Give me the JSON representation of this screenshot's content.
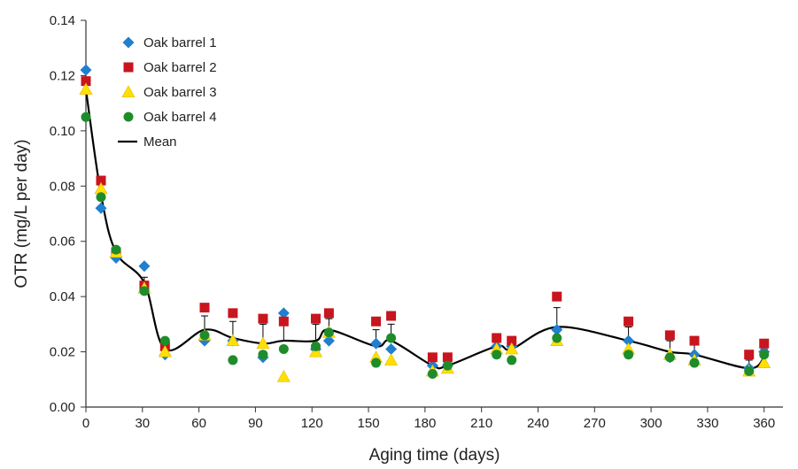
{
  "chart_data": {
    "type": "scatter",
    "title": "",
    "xlabel": "Aging time (days)",
    "ylabel": "OTR  (mg/L per day)",
    "xlim": [
      0,
      370
    ],
    "ylim": [
      0,
      0.14
    ],
    "xticks": [
      "0",
      "30",
      "60",
      "90",
      "120",
      "150",
      "180",
      "210",
      "240",
      "270",
      "300",
      "330",
      "360"
    ],
    "yticks": [
      "0.00",
      "0.02",
      "0.04",
      "0.06",
      "0.08",
      "0.10",
      "0.12",
      "0.14"
    ],
    "grid": false,
    "legend_position": "top-left",
    "series": [
      {
        "name": "Oak barrel 1",
        "marker": "diamond",
        "color": "#1f7fd0",
        "points": [
          [
            0,
            0.122
          ],
          [
            8,
            0.072
          ],
          [
            16,
            0.054
          ],
          [
            31,
            0.051
          ],
          [
            42,
            0.019
          ],
          [
            63,
            0.024
          ],
          [
            78,
            0.024
          ],
          [
            94,
            0.018
          ],
          [
            105,
            0.034
          ],
          [
            122,
            0.021
          ],
          [
            129,
            0.024
          ],
          [
            154,
            0.023
          ],
          [
            162,
            0.021
          ],
          [
            184,
            0.015
          ],
          [
            192,
            0.015
          ],
          [
            218,
            0.022
          ],
          [
            226,
            0.022
          ],
          [
            250,
            0.028
          ],
          [
            288,
            0.024
          ],
          [
            310,
            0.018
          ],
          [
            323,
            0.019
          ],
          [
            352,
            0.014
          ],
          [
            360,
            0.02
          ]
        ]
      },
      {
        "name": "Oak barrel 2",
        "marker": "square",
        "color": "#c8151e",
        "points": [
          [
            0,
            0.118
          ],
          [
            8,
            0.082
          ],
          [
            16,
            0.056
          ],
          [
            31,
            0.044
          ],
          [
            42,
            0.022
          ],
          [
            63,
            0.036
          ],
          [
            78,
            0.034
          ],
          [
            94,
            0.032
          ],
          [
            105,
            0.031
          ],
          [
            122,
            0.032
          ],
          [
            129,
            0.034
          ],
          [
            154,
            0.031
          ],
          [
            162,
            0.033
          ],
          [
            184,
            0.018
          ],
          [
            192,
            0.018
          ],
          [
            218,
            0.025
          ],
          [
            226,
            0.024
          ],
          [
            250,
            0.04
          ],
          [
            288,
            0.031
          ],
          [
            310,
            0.026
          ],
          [
            323,
            0.024
          ],
          [
            352,
            0.019
          ],
          [
            360,
            0.023
          ]
        ]
      },
      {
        "name": "Oak barrel 3",
        "marker": "triangle",
        "color": "#ffe000",
        "points": [
          [
            0,
            0.115
          ],
          [
            8,
            0.079
          ],
          [
            16,
            0.056
          ],
          [
            31,
            0.043
          ],
          [
            42,
            0.02
          ],
          [
            63,
            0.026
          ],
          [
            78,
            0.024
          ],
          [
            94,
            0.023
          ],
          [
            105,
            0.011
          ],
          [
            122,
            0.02
          ],
          [
            129,
            0.027
          ],
          [
            154,
            0.018
          ],
          [
            162,
            0.017
          ],
          [
            184,
            0.013
          ],
          [
            192,
            0.014
          ],
          [
            218,
            0.021
          ],
          [
            226,
            0.021
          ],
          [
            250,
            0.024
          ],
          [
            288,
            0.021
          ],
          [
            310,
            0.019
          ],
          [
            323,
            0.017
          ],
          [
            352,
            0.013
          ],
          [
            360,
            0.016
          ]
        ]
      },
      {
        "name": "Oak barrel 4",
        "marker": "circle",
        "color": "#1e8c2a",
        "points": [
          [
            0,
            0.105
          ],
          [
            8,
            0.076
          ],
          [
            16,
            0.057
          ],
          [
            31,
            0.042
          ],
          [
            42,
            0.024
          ],
          [
            63,
            0.026
          ],
          [
            78,
            0.017
          ],
          [
            94,
            0.019
          ],
          [
            105,
            0.021
          ],
          [
            122,
            0.022
          ],
          [
            129,
            0.027
          ],
          [
            154,
            0.016
          ],
          [
            162,
            0.025
          ],
          [
            184,
            0.012
          ],
          [
            192,
            0.015
          ],
          [
            218,
            0.019
          ],
          [
            226,
            0.017
          ],
          [
            250,
            0.025
          ],
          [
            288,
            0.019
          ],
          [
            310,
            0.018
          ],
          [
            323,
            0.016
          ],
          [
            352,
            0.013
          ],
          [
            360,
            0.019
          ]
        ]
      },
      {
        "name": "Mean",
        "marker": "line",
        "color": "#000000",
        "points": [
          [
            0,
            0.115
          ],
          [
            8,
            0.077
          ],
          [
            16,
            0.056
          ],
          [
            31,
            0.045
          ],
          [
            42,
            0.021
          ],
          [
            63,
            0.028
          ],
          [
            78,
            0.025
          ],
          [
            94,
            0.023
          ],
          [
            105,
            0.024
          ],
          [
            122,
            0.024
          ],
          [
            129,
            0.028
          ],
          [
            154,
            0.022
          ],
          [
            162,
            0.024
          ],
          [
            184,
            0.015
          ],
          [
            192,
            0.015
          ],
          [
            218,
            0.022
          ],
          [
            226,
            0.021
          ],
          [
            250,
            0.029
          ],
          [
            288,
            0.024
          ],
          [
            310,
            0.02
          ],
          [
            323,
            0.019
          ],
          [
            352,
            0.014
          ],
          [
            360,
            0.018
          ]
        ],
        "error_upper": [
          0.007,
          0.005,
          0.001,
          0.002,
          0.004,
          0.005,
          0.006,
          0.007,
          0.008,
          0.006,
          0.004,
          0.006,
          0.006,
          0.002,
          0.002,
          0.002,
          0.002,
          0.007,
          0.005,
          0.004,
          0.004,
          0.003,
          0.003
        ]
      }
    ]
  }
}
